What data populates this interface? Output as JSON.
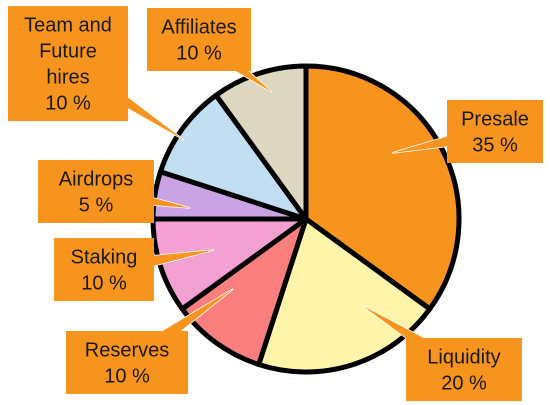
{
  "chart_data": {
    "type": "pie",
    "title": "",
    "start_angle_deg": 0,
    "direction": "clockwise",
    "slice_border_color": "#000000",
    "label_box_color": "#F7941D",
    "slices": [
      {
        "label": "Presale",
        "value": 35,
        "value_label": "35 %",
        "color": "#F7941D",
        "label_lines": [
          "Presale",
          "35 %"
        ]
      },
      {
        "label": "Liquidity",
        "value": 20,
        "value_label": "20 %",
        "color": "#FFF5AA",
        "label_lines": [
          "Liquidity",
          "20 %"
        ]
      },
      {
        "label": "Reserves",
        "value": 10,
        "value_label": "10 %",
        "color": "#F97E7E",
        "label_lines": [
          "Reserves",
          "10 %"
        ]
      },
      {
        "label": "Staking",
        "value": 10,
        "value_label": "10 %",
        "color": "#F2A1D2",
        "label_lines": [
          "Staking",
          "10 %"
        ]
      },
      {
        "label": "Airdrops",
        "value": 5,
        "value_label": "5 %",
        "color": "#C9A3E3",
        "label_lines": [
          "Airdrops",
          "5 %"
        ]
      },
      {
        "label": "Team and Future hires",
        "value": 10,
        "value_label": "10 %",
        "color": "#C2DEF2",
        "label_lines": [
          "Team and",
          "Future",
          "hires",
          "10 %"
        ]
      },
      {
        "label": "Affiliates",
        "value": 10,
        "value_label": "10 %",
        "color": "#DDD6C0",
        "label_lines": [
          "Affiliates",
          "10 %"
        ]
      }
    ]
  }
}
